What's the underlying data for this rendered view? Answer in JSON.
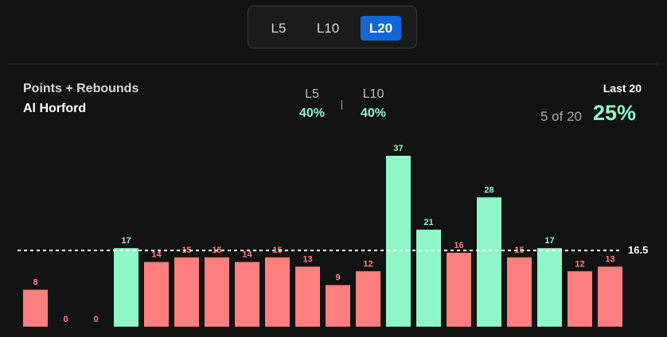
{
  "tabs": [
    {
      "label": "L5",
      "active": false
    },
    {
      "label": "L10",
      "active": false
    },
    {
      "label": "L20",
      "active": true
    }
  ],
  "header": {
    "stat_name": "Points + Rebounds",
    "player": "Al Horford"
  },
  "summary": {
    "l5_label": "L5",
    "l5_pct": "40%",
    "l10_label": "L10",
    "l10_pct": "40%",
    "last_label": "Last 20",
    "last_fraction": "5 of 20",
    "last_pct": "25%"
  },
  "colors": {
    "over": "#8ff7c7",
    "under": "#ff7e7e",
    "accent": "#1168d9"
  },
  "chart_data": {
    "type": "bar",
    "values": [
      8,
      0,
      0,
      17,
      14,
      15,
      15,
      14,
      15,
      13,
      9,
      12,
      37,
      21,
      16,
      28,
      15,
      17,
      12,
      13
    ],
    "threshold": 16.5,
    "threshold_label": "16.5",
    "ylim": [
      0,
      37
    ],
    "grid": false
  }
}
